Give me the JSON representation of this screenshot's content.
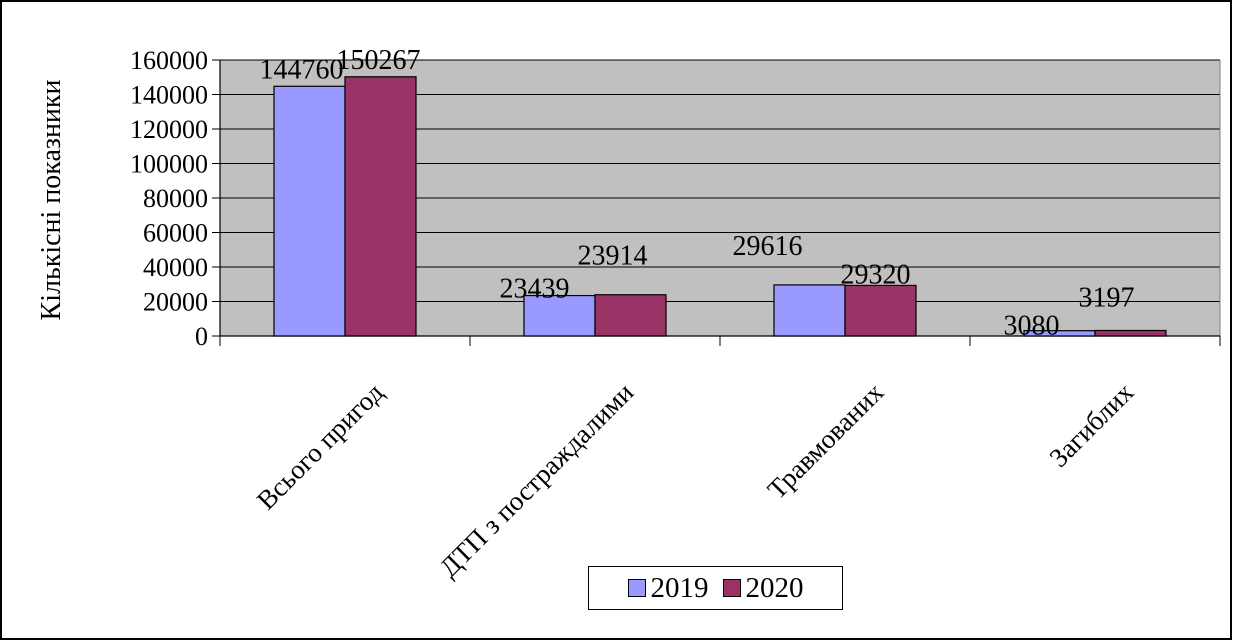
{
  "chart_data": {
    "type": "bar",
    "title": "",
    "xlabel": "",
    "ylabel": "Кількісні показники",
    "categories": [
      "Всього пригод",
      "ДТП з постраждалими",
      "Травмованих",
      "Загиблих"
    ],
    "series": [
      {
        "name": "2019",
        "color": "#9999ff",
        "values": [
          144760,
          23439,
          29616,
          3080
        ]
      },
      {
        "name": "2020",
        "color": "#993366",
        "values": [
          150267,
          23914,
          29320,
          3197
        ]
      }
    ],
    "ylim": [
      0,
      160000
    ],
    "yticks": [
      "0",
      "20000",
      "40000",
      "60000",
      "80000",
      "100000",
      "120000",
      "140000",
      "160000"
    ],
    "grid": true,
    "plot_background": "#c0c0c0",
    "legend": "bottom"
  }
}
